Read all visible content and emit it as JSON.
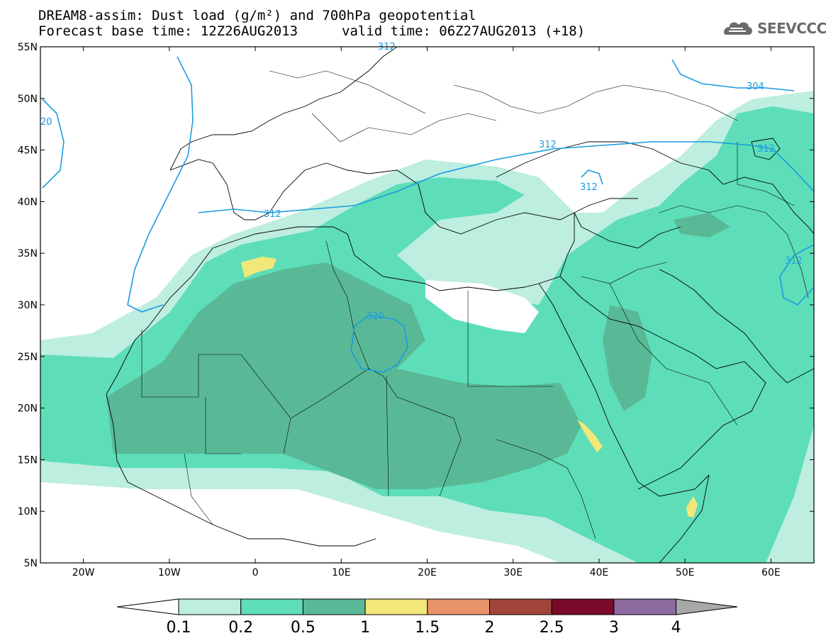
{
  "title": {
    "line1": "DREAM8-assim: Dust load (g/m²) and 700hPa geopotential",
    "line2": "Forecast base time: 12Z26AUG2013",
    "valid": "valid time: 06Z27AUG2013 (+18)"
  },
  "logo": {
    "text": "SEEVCCC",
    "icon": "cloud-icon"
  },
  "map": {
    "lon_range": [
      -25,
      65
    ],
    "lat_range": [
      5,
      55
    ],
    "lat_ticks": [
      "5N",
      "10N",
      "15N",
      "20N",
      "25N",
      "30N",
      "35N",
      "40N",
      "45N",
      "50N",
      "55N"
    ],
    "lon_ticks": [
      "20W",
      "10W",
      "0",
      "10E",
      "20E",
      "30E",
      "40E",
      "50E",
      "60E"
    ],
    "contour_labels": [
      "312",
      "312",
      "312",
      "312",
      "312",
      "320",
      "304",
      "20",
      "312"
    ],
    "dust_colors": {
      "l1": "#bdeee0",
      "l2": "#5ddeb8",
      "l3": "#59b996",
      "l4": "#f2e779"
    },
    "contour_color": "#1a9ce0"
  },
  "colorbar": {
    "levels": [
      "0.1",
      "0.2",
      "0.5",
      "1",
      "1.5",
      "2",
      "2.5",
      "3",
      "4"
    ],
    "colors": [
      "#bdeee0",
      "#5ddeb8",
      "#59b996",
      "#f2e779",
      "#e8926a",
      "#a0453a",
      "#7a0a2a",
      "#8c6aa0",
      "#a8a8a8"
    ]
  }
}
